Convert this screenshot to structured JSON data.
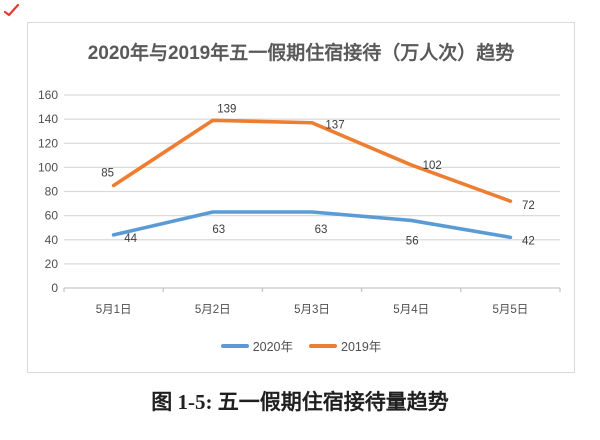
{
  "red_mark": {
    "icon": "red-tick-mark",
    "color": "#E23B2E"
  },
  "chart_data": {
    "type": "line",
    "title": "2020年与2019年五一假期住宿接待（万人次）趋势",
    "categories": [
      "5月1日",
      "5月2日",
      "5月3日",
      "5月4日",
      "5月5日"
    ],
    "series": [
      {
        "name": "2020年",
        "values": [
          44,
          63,
          63,
          56,
          42
        ],
        "color": "#5B9BD5",
        "label_offsets": [
          [
            17,
            3
          ],
          [
            6,
            17
          ],
          [
            9,
            17
          ],
          [
            1,
            20
          ],
          [
            18,
            3
          ]
        ]
      },
      {
        "name": "2019年",
        "values": [
          85,
          139,
          137,
          102,
          72
        ],
        "color": "#ED7D31",
        "label_offsets": [
          [
            -6,
            -13
          ],
          [
            14,
            -12
          ],
          [
            23,
            2
          ],
          [
            21,
            0
          ],
          [
            18,
            4
          ]
        ]
      }
    ],
    "xlabel": "",
    "ylabel": "",
    "ylim": [
      0,
      160
    ],
    "ytick_step": 20,
    "grid": true,
    "data_labels": true,
    "legend_position": "bottom"
  },
  "caption": "图 1-5: 五一假期住宿接待量趋势",
  "colors": {
    "gridline": "#DADADA",
    "axis_line": "#C6C6C6",
    "tick_text": "#4F4F4F",
    "data_label_text": "#3C3C3C",
    "title_text": "#595959",
    "legend_text": "#4F4F4F",
    "frame_border": "#D9D9D9",
    "series_2020": "#5B9BD5",
    "series_2019": "#ED7D31",
    "caption_text": "#202020"
  }
}
